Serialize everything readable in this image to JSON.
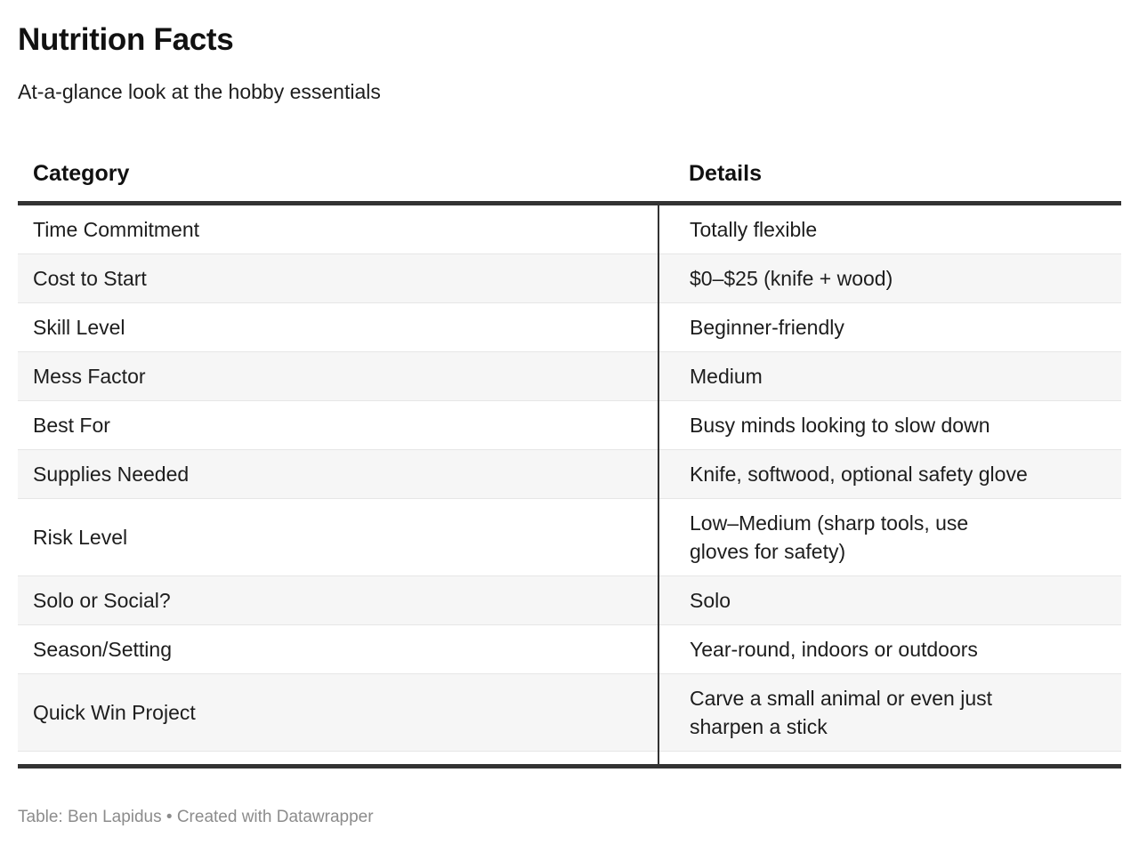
{
  "chart_data": {
    "type": "table",
    "title": "Nutrition Facts",
    "subtitle": "At-a-glance look at the hobby essentials",
    "columns": [
      "Category",
      "Details"
    ],
    "rows": [
      {
        "category": "Time Commitment",
        "details": "Totally flexible"
      },
      {
        "category": "Cost to Start",
        "details": "$0–$25 (knife + wood)"
      },
      {
        "category": "Skill Level",
        "details": "Beginner-friendly"
      },
      {
        "category": "Mess Factor",
        "details": "Medium"
      },
      {
        "category": "Best For",
        "details": "Busy minds looking to slow down"
      },
      {
        "category": "Supplies Needed",
        "details": "Knife, softwood, optional safety glove"
      },
      {
        "category": "Risk Level",
        "details": "Low–Medium (sharp tools, use\ngloves for safety)"
      },
      {
        "category": "Solo or Social?",
        "details": "Solo"
      },
      {
        "category": "Season/Setting",
        "details": "Year-round, indoors or outdoors"
      },
      {
        "category": "Quick Win Project",
        "details": "Carve a small animal or even just\nsharpen a stick"
      }
    ],
    "layout_hints": {
      "striped_rows": true,
      "stripe_on": "even rows",
      "column_divider": true,
      "thick_rule_above_body": true,
      "thick_rule_below_body": true
    }
  },
  "footer": {
    "attribution": "Table: Ben Lapidus • Created with Datawrapper"
  },
  "colors": {
    "rule_dark": "#333333",
    "row_stripe": "#f6f6f6",
    "row_separator": "#e6e6e6",
    "footer_text": "#8c8c8c",
    "text": "#1d1d1d"
  }
}
